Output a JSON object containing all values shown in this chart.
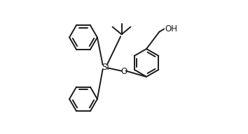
{
  "bg_color": "#ffffff",
  "line_color": "#1a1a1a",
  "line_width": 1.4,
  "font_size": 8.5,
  "figsize": [
    3.54,
    1.92
  ],
  "dpi": 100,
  "xlim": [
    -0.05,
    1.05
  ],
  "ylim": [
    -0.05,
    1.05
  ],
  "si_label": "Si",
  "o_label": "O",
  "oh_label": "OH"
}
